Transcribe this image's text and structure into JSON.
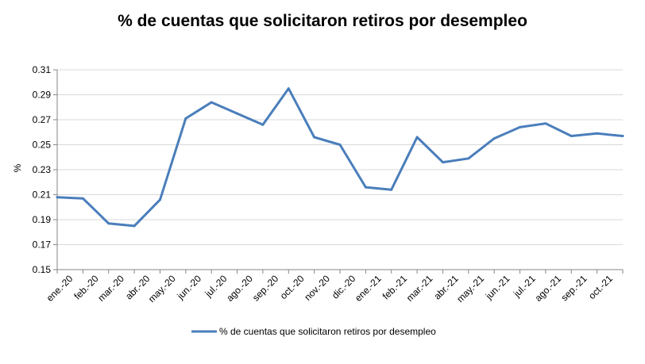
{
  "chart_data": {
    "type": "line",
    "title": "% de cuentas que solicitaron retiros por desempleo",
    "xlabel": "",
    "ylabel": "%",
    "ylim": [
      0.15,
      0.31
    ],
    "yticks": [
      "0.31",
      "0.29",
      "0.27",
      "0.25",
      "0.23",
      "0.21",
      "0.19",
      "0.17",
      "0.15"
    ],
    "grid": true,
    "legend_position": "bottom",
    "categories": [
      "ene.-20",
      "feb.-20",
      "mar.-20",
      "abr.-20",
      "may.-20",
      "jun.-20",
      "jul.-20",
      "ago.-20",
      "sep.-20",
      "oct.-20",
      "nov.-20",
      "dic.-20",
      "ene.-21",
      "feb.-21",
      "mar.-21",
      "abr.-21",
      "may.-21",
      "jun.-21",
      "jul.-21",
      "ago.-21",
      "sep.-21",
      "oct.-21"
    ],
    "x": [
      "ene.-20",
      "",
      "feb.-20",
      "mar.-20",
      "abr.-20",
      "may.-20",
      "jun.-20",
      "jul.-20",
      "ago.-20",
      "sep.-20",
      "oct.-20",
      "nov.-20",
      "dic.-20",
      "ene.-21",
      "feb.-21",
      "mar.-21",
      "abr.-21",
      "may.-21",
      "jun.-21",
      "jul.-21",
      "ago.-21",
      "sep.-21",
      "oct.-21"
    ],
    "series": [
      {
        "name": "% de cuentas que solicitaron retiros por desempleo",
        "color": "#4a7ebb",
        "values": [
          0.208,
          0.207,
          0.187,
          0.185,
          0.206,
          0.271,
          0.284,
          0.275,
          0.266,
          0.295,
          0.256,
          0.25,
          0.216,
          0.214,
          0.256,
          0.236,
          0.239,
          0.255,
          0.264,
          0.267,
          0.257,
          0.259,
          0.257
        ]
      }
    ]
  }
}
